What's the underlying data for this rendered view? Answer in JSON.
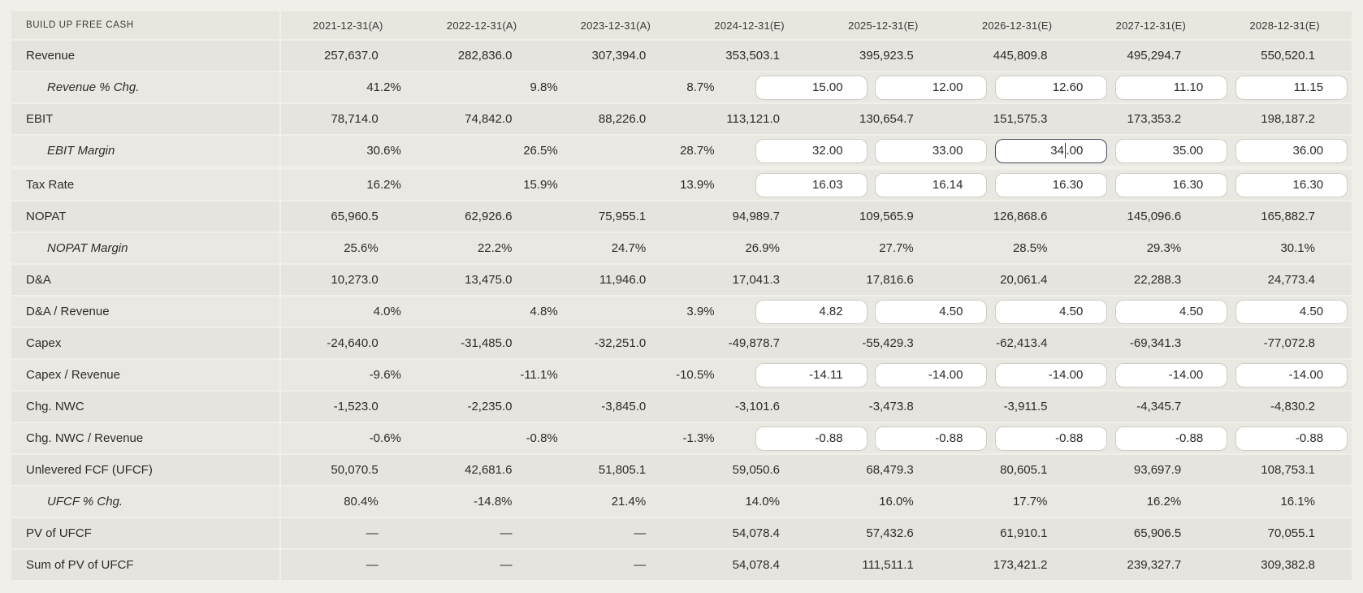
{
  "table": {
    "title": "BUILD UP FREE CASH",
    "columns": [
      "2021-12-31(A)",
      "2022-12-31(A)",
      "2023-12-31(A)",
      "2024-12-31(E)",
      "2025-12-31(E)",
      "2026-12-31(E)",
      "2027-12-31(E)",
      "2028-12-31(E)"
    ],
    "rows": [
      {
        "label": "Revenue",
        "italic": false,
        "indent": false,
        "input": false,
        "values": [
          "257,637.0",
          "282,836.0",
          "307,394.0",
          "353,503.1",
          "395,923.5",
          "445,809.8",
          "495,294.7",
          "550,520.1"
        ]
      },
      {
        "label": "Revenue % Chg.",
        "italic": true,
        "indent": true,
        "input": true,
        "values": [
          "41.2%",
          "9.8%",
          "8.7%",
          "15.00",
          "12.00",
          "12.60",
          "11.10",
          "11.15"
        ]
      },
      {
        "label": "EBIT",
        "italic": false,
        "indent": false,
        "input": false,
        "values": [
          "78,714.0",
          "74,842.0",
          "88,226.0",
          "113,121.0",
          "130,654.7",
          "151,575.3",
          "173,353.2",
          "198,187.2"
        ]
      },
      {
        "label": "EBIT Margin",
        "italic": true,
        "indent": true,
        "input": true,
        "values": [
          "30.6%",
          "26.5%",
          "28.7%",
          "32.00",
          "33.00",
          "34.00",
          "35.00",
          "36.00"
        ],
        "focused_col": 5,
        "caret_before": "34",
        "caret_after": ".00"
      },
      {
        "label": "Tax Rate",
        "italic": false,
        "indent": false,
        "input": true,
        "group_gap": true,
        "values": [
          "16.2%",
          "15.9%",
          "13.9%",
          "16.03",
          "16.14",
          "16.30",
          "16.30",
          "16.30"
        ]
      },
      {
        "label": "NOPAT",
        "italic": false,
        "indent": false,
        "input": false,
        "values": [
          "65,960.5",
          "62,926.6",
          "75,955.1",
          "94,989.7",
          "109,565.9",
          "126,868.6",
          "145,096.6",
          "165,882.7"
        ]
      },
      {
        "label": "NOPAT Margin",
        "italic": true,
        "indent": true,
        "input": false,
        "values": [
          "25.6%",
          "22.2%",
          "24.7%",
          "26.9%",
          "27.7%",
          "28.5%",
          "29.3%",
          "30.1%"
        ]
      },
      {
        "label": "D&A",
        "italic": false,
        "indent": false,
        "input": false,
        "values": [
          "10,273.0",
          "13,475.0",
          "11,946.0",
          "17,041.3",
          "17,816.6",
          "20,061.4",
          "22,288.3",
          "24,773.4"
        ]
      },
      {
        "label": "D&A / Revenue",
        "italic": false,
        "indent": false,
        "input": true,
        "values": [
          "4.0%",
          "4.8%",
          "3.9%",
          "4.82",
          "4.50",
          "4.50",
          "4.50",
          "4.50"
        ]
      },
      {
        "label": "Capex",
        "italic": false,
        "indent": false,
        "input": false,
        "values": [
          "-24,640.0",
          "-31,485.0",
          "-32,251.0",
          "-49,878.7",
          "-55,429.3",
          "-62,413.4",
          "-69,341.3",
          "-77,072.8"
        ]
      },
      {
        "label": "Capex / Revenue",
        "italic": false,
        "indent": false,
        "input": true,
        "values": [
          "-9.6%",
          "-11.1%",
          "-10.5%",
          "-14.11",
          "-14.00",
          "-14.00",
          "-14.00",
          "-14.00"
        ]
      },
      {
        "label": "Chg. NWC",
        "italic": false,
        "indent": false,
        "input": false,
        "values": [
          "-1,523.0",
          "-2,235.0",
          "-3,845.0",
          "-3,101.6",
          "-3,473.8",
          "-3,911.5",
          "-4,345.7",
          "-4,830.2"
        ]
      },
      {
        "label": "Chg. NWC / Revenue",
        "italic": false,
        "indent": false,
        "input": true,
        "values": [
          "-0.6%",
          "-0.8%",
          "-1.3%",
          "-0.88",
          "-0.88",
          "-0.88",
          "-0.88",
          "-0.88"
        ]
      },
      {
        "label": "Unlevered FCF (UFCF)",
        "italic": false,
        "indent": false,
        "input": false,
        "values": [
          "50,070.5",
          "42,681.6",
          "51,805.1",
          "59,050.6",
          "68,479.3",
          "80,605.1",
          "93,697.9",
          "108,753.1"
        ]
      },
      {
        "label": "UFCF % Chg.",
        "italic": true,
        "indent": true,
        "input": false,
        "values": [
          "80.4%",
          "-14.8%",
          "21.4%",
          "14.0%",
          "16.0%",
          "17.7%",
          "16.2%",
          "16.1%"
        ]
      },
      {
        "label": "PV of UFCF",
        "italic": false,
        "indent": false,
        "input": false,
        "values": [
          "—",
          "—",
          "—",
          "54,078.4",
          "57,432.6",
          "61,910.1",
          "65,906.5",
          "70,055.1"
        ]
      },
      {
        "label": "Sum of PV of UFCF",
        "italic": false,
        "indent": false,
        "input": false,
        "values": [
          "—",
          "—",
          "—",
          "54,078.4",
          "111,511.1",
          "173,421.2",
          "239,327.7",
          "309,382.8"
        ]
      }
    ],
    "colors": {
      "page_bg": "#f1efe9",
      "header_bg": "#e9e6e0",
      "row_dark": "#e6e4de",
      "row_light": "#eae8e2",
      "input_bg": "#ffffff",
      "input_border": "#cfccc6",
      "input_border_focused": "#454a60",
      "text": "#2d2c2a"
    }
  }
}
